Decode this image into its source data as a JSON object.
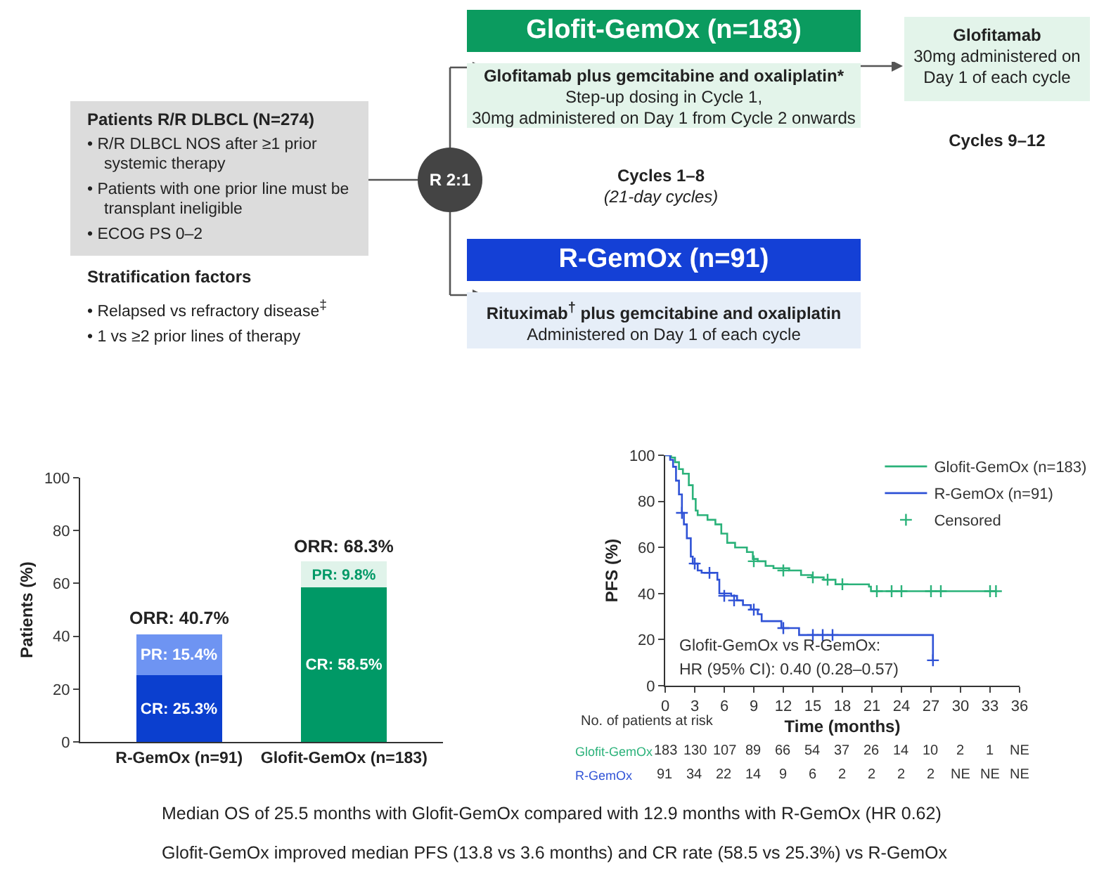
{
  "chart_data": [
    {
      "type": "other",
      "annotations": [
        "Patients R/R DLBCL (N=274)",
        "• R/R DLBCL NOS after ≥1 prior systemic therapy",
        "• Patients with one prior line must be transplant ineligible",
        "• ECOG PS 0–2",
        "Stratification factors",
        "• Relapsed vs refractory disease$^{‡}$",
        "• 1 vs ≥2 prior lines of therapy",
        "R 2:1",
        "Glofit-GemOx (n=183)",
        "Glofitamab plus gemcitabine and oxaliplatin*",
        "Step-up dosing in Cycle 1,",
        "30mg administered on Day 1 from Cycle 2 onwards",
        "Cycles 1–8",
        "(21-day cycles)",
        "R-GemOx (n=91)",
        "Rituximab$^{†}$ plus gemcitabine and oxaliplatin",
        "Administered on Day 1 of each cycle",
        "Glofitamab",
        "30mg administered on Day 1 of each cycle",
        "Cycles 9–12"
      ]
    },
    {
      "type": "bar",
      "stacked": true,
      "categories": [
        "R-GemOx (n=91)",
        "Glofit-GemOx (n=183)"
      ],
      "ylabel": "Patients (%)",
      "ylim": [
        0,
        100
      ],
      "yticks": [
        0,
        20,
        40,
        60,
        80,
        100
      ],
      "series": [
        {
          "colors": [
            "#0b3fcf",
            "#009966"
          ],
          "values": [
            25.3,
            58.5
          ],
          "value_labels": [
            "CR: 25.3%",
            "CR: 58.5%"
          ]
        },
        {
          "colors": [
            "#6e94f2",
            "#e0f3ea"
          ],
          "values": [
            15.4,
            9.8
          ],
          "value_labels": [
            "PR: 15.4%",
            "PR: 9.8%"
          ]
        }
      ],
      "totals": [
        "ORR: 40.7%",
        "ORR: 68.3%"
      ]
    },
    {
      "type": "step",
      "xlabel": "Time (months)",
      "ylabel": "PFS (%)",
      "xlim": [
        0,
        36
      ],
      "xticks": [
        0,
        3,
        6,
        9,
        12,
        15,
        18,
        21,
        24,
        27,
        30,
        33,
        36
      ],
      "ylim": [
        0,
        100
      ],
      "yticks": [
        0,
        20,
        40,
        60,
        80,
        100
      ],
      "legend": "top right",
      "series": [
        {
          "name": "Glofit-GemOx (n=183)",
          "color": "#2bb27a",
          "x": [
            0,
            0.6,
            1.0,
            1.4,
            1.8,
            2.4,
            2.8,
            3.1,
            3.3,
            4.3,
            5.1,
            5.7,
            6.3,
            7.1,
            8.3,
            8.9,
            9.4,
            10.2,
            11.0,
            12.6,
            13.8,
            14.9,
            16.1,
            17.3,
            18.9,
            20.7,
            20.9,
            33.6
          ],
          "values": [
            100,
            99,
            97,
            94,
            92,
            87,
            81,
            76,
            74,
            72,
            70,
            66,
            62,
            60,
            58,
            55,
            54,
            52,
            51,
            50,
            48,
            47,
            46,
            44,
            44,
            43,
            41,
            41
          ]
        },
        {
          "name": "R-GemOx (n=91)",
          "color": "#2f52d6",
          "x": [
            0,
            0.5,
            0.8,
            1.1,
            1.4,
            1.7,
            1.9,
            2.2,
            2.6,
            2.8,
            3.3,
            3.7,
            5.3,
            5.5,
            6.7,
            7.3,
            7.9,
            8.7,
            9.4,
            9.8,
            11.8,
            13.6,
            27.2
          ],
          "values": [
            100,
            98,
            95,
            89,
            83,
            75,
            70,
            64,
            56,
            53,
            50,
            49,
            46,
            40,
            39,
            37,
            35,
            33,
            31,
            28,
            25,
            22,
            11
          ]
        },
        {
          "name": "Censored",
          "type": "scatter",
          "marker": "cross",
          "x": [
            9.0,
            12.0,
            15.0,
            16.5,
            18.0,
            21.5,
            23.0,
            24.0,
            27.0,
            28.0,
            33.0,
            33.6,
            1.7,
            3.0,
            4.5,
            6.0,
            7.0,
            9.0,
            12.0,
            15.0,
            16.0,
            17.0,
            27.2
          ],
          "values": [
            54,
            50,
            47,
            46,
            44,
            41,
            41,
            41,
            41,
            41,
            41,
            41,
            75,
            53,
            49,
            39,
            37,
            33,
            25,
            22,
            22,
            22,
            11
          ],
          "colors": [
            "#2bb27a",
            "#2bb27a",
            "#2bb27a",
            "#2bb27a",
            "#2bb27a",
            "#2bb27a",
            "#2bb27a",
            "#2bb27a",
            "#2bb27a",
            "#2bb27a",
            "#2bb27a",
            "#2bb27a",
            "#2f52d6",
            "#2f52d6",
            "#2f52d6",
            "#2f52d6",
            "#2f52d6",
            "#2f52d6",
            "#2f52d6",
            "#2f52d6",
            "#2f52d6",
            "#2f52d6",
            "#2f52d6"
          ]
        }
      ],
      "annotations": [
        "Glofit-GemOx vs R-GemOx:",
        "HR (95% CI): 0.40 (0.28–0.57)",
        "No. of patients at risk",
        "Glofit-GemOx",
        "183",
        "130",
        "107",
        "89",
        "66",
        "54",
        "37",
        "26",
        "14",
        "10",
        "2",
        "1",
        "NE",
        "R-GemOx",
        "91",
        "34",
        "22",
        "14",
        "9",
        "6",
        "2",
        "2",
        "2",
        "2",
        "NE",
        "NE",
        "NE"
      ]
    },
    {
      "type": "other",
      "annotations": [
        "Median OS of 25.5 months with Glofit-GemOx compared with 12.9 months with R-GemOx (HR 0.62)",
        "Glofit-GemOx improved median PFS (13.8 vs 3.6 months) and CR rate (58.5 vs 25.3%) vs R-GemOx"
      ]
    }
  ]
}
